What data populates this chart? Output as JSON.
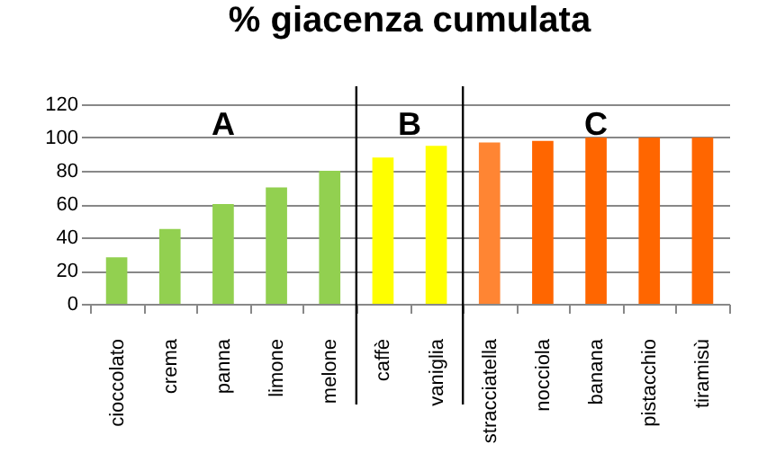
{
  "chart_data": {
    "type": "bar",
    "title": "% giacenza cumulata",
    "categories": [
      "cioccolato",
      "crema",
      "panna",
      "limone",
      "melone",
      "caffè",
      "vaniglia",
      "stracciatella",
      "nocciola",
      "banana",
      "pistacchio",
      "tiramisù"
    ],
    "values": [
      28,
      45,
      60,
      70,
      80,
      88,
      95,
      97,
      98,
      100,
      100,
      100
    ],
    "colors": [
      "#92d050",
      "#92d050",
      "#92d050",
      "#92d050",
      "#92d050",
      "#ffff00",
      "#ffff00",
      "#ff8533",
      "#ff6600",
      "#ff6600",
      "#ff6600",
      "#ff6600"
    ],
    "annotations": [
      "A",
      "B",
      "C"
    ],
    "ylim": [
      0,
      120
    ],
    "yticks": [
      0,
      20,
      40,
      60,
      80,
      100,
      120
    ],
    "grid": "y"
  }
}
